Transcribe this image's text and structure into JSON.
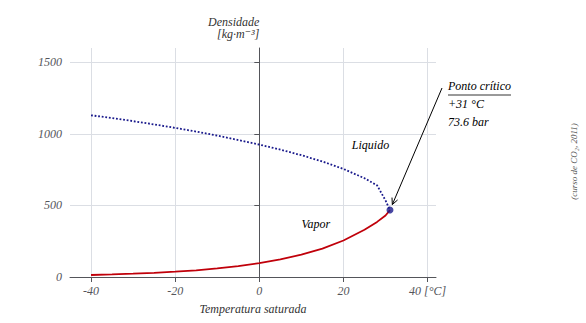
{
  "chart_data": {
    "type": "line",
    "xlabel": "Temperatura saturada",
    "ylabel": [
      "Densidade",
      "[kg·m⁻³]"
    ],
    "xlim": [
      -45,
      42
    ],
    "ylim": [
      0,
      1600
    ],
    "xticks": [
      -40,
      -20,
      0,
      20,
      {
        "value": 40,
        "label": "40 [°C]"
      }
    ],
    "yticks": [
      0,
      500,
      1000,
      1500
    ],
    "grid": true,
    "series": [
      {
        "type": "line",
        "color": "#1a1a8c",
        "line_style": "dotted",
        "x": [
          -40,
          -35,
          -30,
          -25,
          -20,
          -15,
          -10,
          -5,
          0,
          5,
          10,
          15,
          20,
          25,
          28,
          30,
          31.06
        ],
        "values": [
          1130,
          1110,
          1089,
          1066,
          1042,
          1016,
          988,
          957,
          925,
          890,
          851,
          807,
          755,
          690,
          640,
          535,
          467.6
        ]
      },
      {
        "type": "line",
        "color": "#c0000a",
        "line_style": "solid",
        "x": [
          -40,
          -35,
          -30,
          -25,
          -20,
          -15,
          -10,
          -5,
          0,
          5,
          10,
          15,
          20,
          25,
          28,
          30,
          31.06
        ],
        "values": [
          14,
          18,
          23,
          29,
          37,
          47,
          60,
          76,
          97,
          123,
          156,
          198,
          255,
          330,
          385,
          430,
          467.6
        ]
      },
      {
        "type": "scatter",
        "color": "#1a1a8c",
        "marker": "circle",
        "x": [
          31.06
        ],
        "values": [
          467.6
        ]
      }
    ],
    "annotations": [
      {
        "text": "Liquido",
        "x": 22,
        "y": 920
      },
      {
        "text": "Vapor",
        "x": 10,
        "y": 370
      }
    ],
    "callout": [
      "Ponto crítico",
      "+31 °C",
      "73.6 bar"
    ],
    "note": "(curso de CO₂, 2011)"
  }
}
